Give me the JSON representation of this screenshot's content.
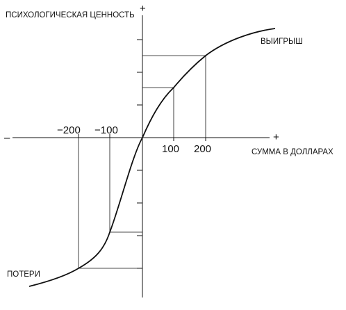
{
  "labels": {
    "y_axis": "ПСИХОЛОГИЧЕСКАЯ ЦЕННОСТЬ",
    "x_axis": "СУММА В ДОЛЛАРАХ",
    "gains": "ВЫИГРЫШ",
    "losses": "ПОТЕРИ",
    "plus_top": "+",
    "plus_right": "+",
    "minus_left": "–"
  },
  "ticks": {
    "neg_200": "−200",
    "neg_100": "−100",
    "pos_100": "100",
    "pos_200": "200"
  },
  "colors": {
    "line": "#111111",
    "background": "#ffffff"
  }
}
